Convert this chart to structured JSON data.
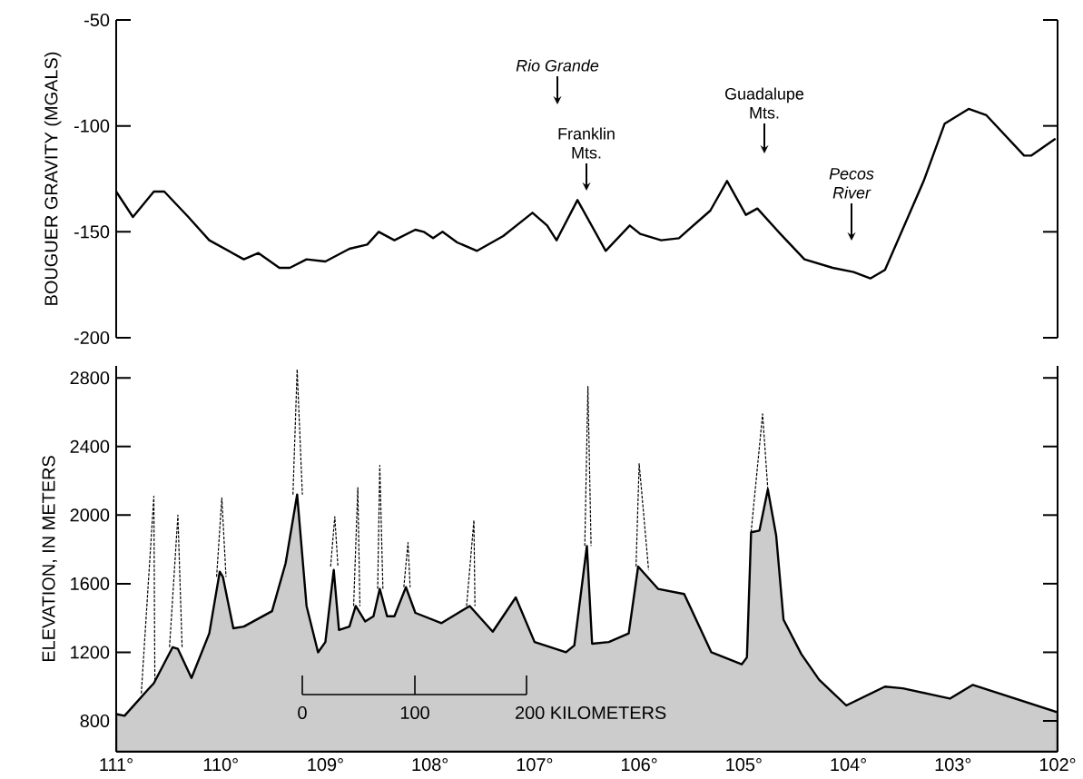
{
  "chart_data": [
    {
      "type": "line",
      "ylabel": "BOUGUER GRAVITY (MGALS)",
      "xlim": [
        111,
        102
      ],
      "ylim": [
        -200,
        -50
      ],
      "yticks": [
        -200,
        -150,
        -100,
        -50
      ],
      "tick_labels": "y",
      "x": [
        111.0,
        110.84,
        110.64,
        110.54,
        110.31,
        110.11,
        109.78,
        109.64,
        109.44,
        109.34,
        109.18,
        109.0,
        108.77,
        108.6,
        108.49,
        108.34,
        108.14,
        108.06,
        107.97,
        107.88,
        107.74,
        107.55,
        107.3,
        107.02,
        106.88,
        106.79,
        106.59,
        106.32,
        106.09,
        105.99,
        105.79,
        105.62,
        105.32,
        105.16,
        104.98,
        104.87,
        104.65,
        104.42,
        104.15,
        103.95,
        103.79,
        103.65,
        103.28,
        103.08,
        102.85,
        102.68,
        102.32,
        102.25,
        102.02
      ],
      "series": [
        {
          "color": "#000000",
          "values": [
            -131,
            -143,
            -131,
            -131,
            -143,
            -154,
            -163,
            -160,
            -167,
            -167,
            -163,
            -164,
            -158,
            -156,
            -150,
            -154,
            -149,
            -150,
            -153,
            -150,
            -155,
            -159,
            -152,
            -141,
            -147,
            -154,
            -135,
            -159,
            -147,
            -151,
            -154,
            -153,
            -140,
            -126,
            -142,
            -139,
            -151,
            -163,
            -167,
            -169,
            -172,
            -168,
            -126,
            -99,
            -92,
            -95,
            -114,
            -114,
            -106
          ]
        }
      ],
      "annotations": [
        "Rio Grande",
        "Franklin Mts.",
        "Guadalupe Mts.",
        "Pecos River"
      ]
    },
    {
      "type": "area",
      "ylabel": "ELEVATION, IN METERS",
      "xlim": [
        111,
        102
      ],
      "ylim": [
        620,
        2870
      ],
      "yticks": [
        800,
        1200,
        1600,
        2000,
        2400,
        2800
      ],
      "xticks": [
        {
          "value": 111,
          "label": "111°"
        },
        {
          "value": 110,
          "label": "110°"
        },
        {
          "value": 109,
          "label": "109°"
        },
        {
          "value": 108,
          "label": "108°"
        },
        {
          "value": 107,
          "label": "107°"
        },
        {
          "value": 106,
          "label": "106°"
        },
        {
          "value": 105,
          "label": "105°"
        },
        {
          "value": 104,
          "label": "104°"
        },
        {
          "value": 103,
          "label": "103°"
        },
        {
          "value": 102,
          "label": "102°"
        }
      ],
      "series": [
        {
          "type": "area",
          "color": "#cccccc",
          "x": [
            111.0,
            110.92,
            110.7,
            110.64,
            110.46,
            110.41,
            110.28,
            110.11,
            110.01,
            109.98,
            109.88,
            109.78,
            109.51,
            109.38,
            109.27,
            109.18,
            109.07,
            109.0,
            108.92,
            108.87,
            108.77,
            108.71,
            108.62,
            108.54,
            108.48,
            108.41,
            108.34,
            108.23,
            108.14,
            107.89,
            107.62,
            107.4,
            107.18,
            107.0,
            106.7,
            106.62,
            106.5,
            106.45,
            106.29,
            106.1,
            106.01,
            105.82,
            105.57,
            105.31,
            105.02,
            104.97,
            104.93,
            104.85,
            104.77,
            104.69,
            104.62,
            104.45,
            104.28,
            104.02,
            103.65,
            103.48,
            103.03,
            102.81,
            102.0
          ],
          "values": [
            840,
            830,
            980,
            1020,
            1230,
            1220,
            1050,
            1310,
            1670,
            1640,
            1340,
            1350,
            1440,
            1720,
            2120,
            1470,
            1200,
            1260,
            1680,
            1330,
            1350,
            1470,
            1380,
            1410,
            1570,
            1410,
            1410,
            1580,
            1430,
            1370,
            1470,
            1320,
            1520,
            1260,
            1200,
            1240,
            1820,
            1250,
            1260,
            1310,
            1700,
            1570,
            1540,
            1200,
            1130,
            1170,
            1900,
            1910,
            2150,
            1880,
            1390,
            1190,
            1040,
            890,
            1000,
            990,
            930,
            1010,
            850
          ]
        },
        {
          "type": "line",
          "color": "#000000",
          "line_style": "dashed",
          "x": [
            110.76,
            110.64,
            110.63
          ],
          "values": [
            960,
            2110,
            1030
          ]
        },
        {
          "type": "line",
          "color": "#000000",
          "line_style": "dashed",
          "x": [
            110.49,
            110.41,
            110.37
          ],
          "values": [
            1230,
            2000,
            1230
          ]
        },
        {
          "type": "line",
          "color": "#000000",
          "line_style": "dashed",
          "x": [
            110.04,
            109.99,
            109.95
          ],
          "values": [
            1640,
            2100,
            1640
          ]
        },
        {
          "type": "line",
          "color": "#000000",
          "line_style": "dashed",
          "x": [
            109.31,
            109.27,
            109.22
          ],
          "values": [
            2120,
            2850,
            2120
          ]
        },
        {
          "type": "line",
          "color": "#000000",
          "line_style": "dashed",
          "x": [
            108.95,
            108.91,
            108.88
          ],
          "values": [
            1700,
            1990,
            1700
          ]
        },
        {
          "type": "line",
          "color": "#000000",
          "line_style": "dashed",
          "x": [
            108.73,
            108.69,
            108.67
          ],
          "values": [
            1470,
            2160,
            1470
          ]
        },
        {
          "type": "line",
          "color": "#000000",
          "line_style": "dashed",
          "x": [
            108.5,
            108.48,
            108.45
          ],
          "values": [
            1570,
            2290,
            1570
          ]
        },
        {
          "type": "line",
          "color": "#000000",
          "line_style": "dashed",
          "x": [
            108.25,
            108.21,
            108.19
          ],
          "values": [
            1580,
            1840,
            1580
          ]
        },
        {
          "type": "line",
          "color": "#000000",
          "line_style": "dashed",
          "x": [
            107.65,
            107.58,
            107.57
          ],
          "values": [
            1470,
            1970,
            1470
          ]
        },
        {
          "type": "line",
          "color": "#000000",
          "line_style": "dashed",
          "x": [
            106.52,
            106.49,
            106.46
          ],
          "values": [
            1820,
            2750,
            1820
          ]
        },
        {
          "type": "line",
          "color": "#000000",
          "line_style": "dashed",
          "x": [
            106.03,
            106.0,
            105.91
          ],
          "values": [
            1700,
            2300,
            1680
          ]
        },
        {
          "type": "line",
          "color": "#000000",
          "line_style": "dashed",
          "x": [
            104.93,
            104.82,
            104.77
          ],
          "values": [
            1900,
            2590,
            2150
          ]
        }
      ],
      "annotations": [
        "0",
        "100",
        "200 KILOMETERS"
      ]
    }
  ]
}
